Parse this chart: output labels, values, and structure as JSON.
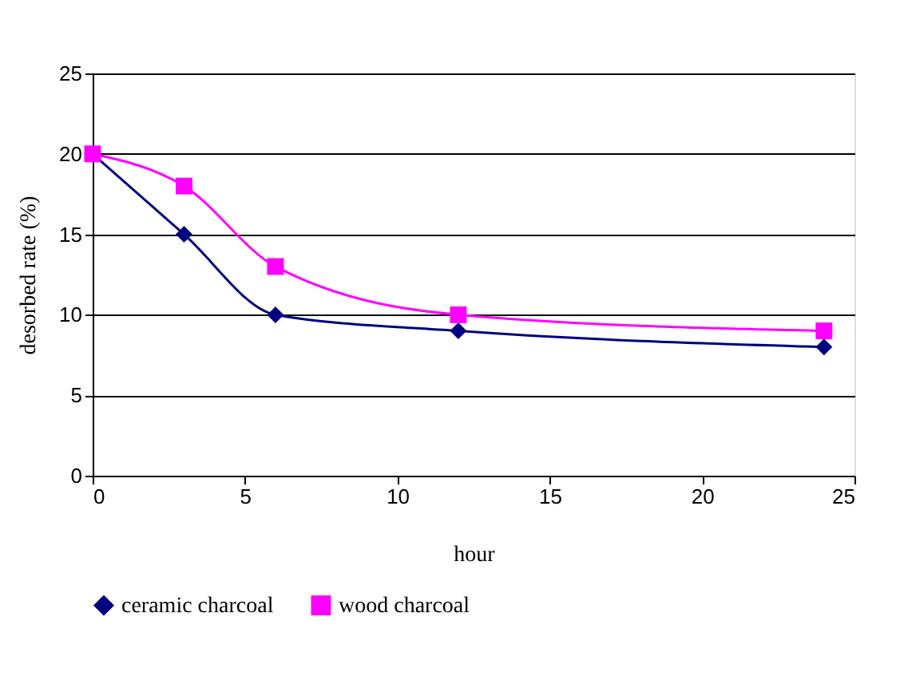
{
  "chart_data": {
    "type": "line",
    "xlabel": "hour",
    "ylabel": "desorbed rate (%)",
    "series": [
      {
        "name": "ceramic charcoal",
        "color": "#000080",
        "marker": "diamond",
        "x": [
          0,
          3,
          6,
          12,
          24
        ],
        "values": [
          20,
          15,
          10,
          9,
          8
        ]
      },
      {
        "name": "wood charcoal",
        "color": "#ff00ff",
        "marker": "square",
        "x": [
          0,
          3,
          6,
          12,
          24
        ],
        "values": [
          20,
          18,
          13,
          10,
          9
        ]
      }
    ],
    "xlim": [
      0,
      25
    ],
    "xticks": [
      0,
      5,
      10,
      15,
      20,
      25
    ],
    "ylim": [
      0,
      25
    ],
    "yticks": [
      0,
      5,
      10,
      15,
      20,
      25
    ],
    "grid": "y",
    "legend": "bottom",
    "line_style": "solid"
  }
}
